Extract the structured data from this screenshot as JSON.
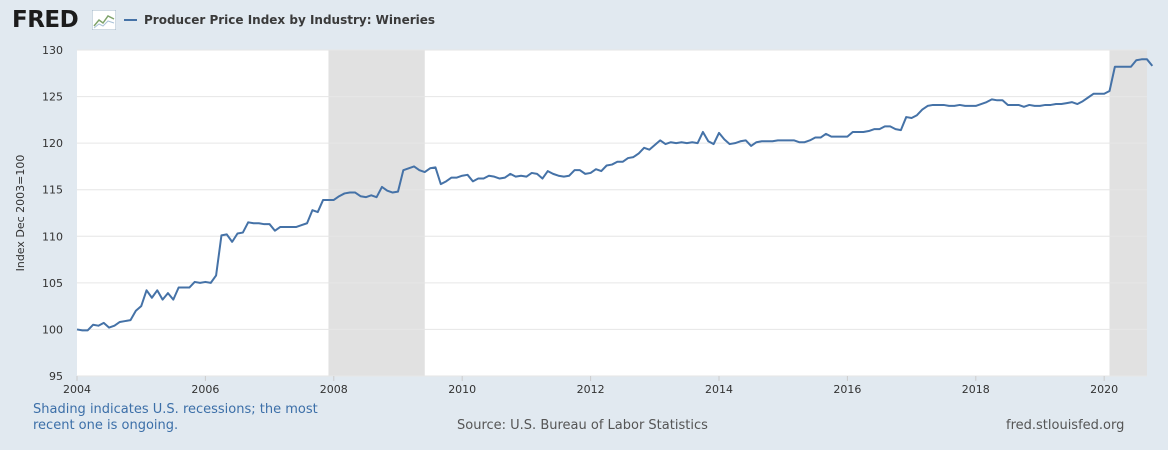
{
  "header": {
    "logo_text": "FRED",
    "legend_label": "Producer Price Index by Industry: Wineries"
  },
  "footer": {
    "note": "Shading indicates U.S. recessions; the most recent one is ongoing.",
    "source": "Source: U.S. Bureau of Labor Statistics",
    "site": "fred.stlouisfed.org"
  },
  "colors": {
    "series": "#4572a7",
    "recession": "#e1e1e1",
    "background": "#e1e9f0",
    "note_text": "#3c6fa8"
  },
  "icons": [
    "fred-logo-chart-icon"
  ],
  "chart_data": {
    "type": "line",
    "title": "",
    "xlabel": "",
    "ylabel": "Index Dec 2003=100",
    "xlim": [
      2004.0,
      2020.667
    ],
    "ylim": [
      95,
      130
    ],
    "yticks": [
      95,
      100,
      105,
      110,
      115,
      120,
      125,
      130
    ],
    "xticks": [
      2004,
      2006,
      2008,
      2010,
      2012,
      2014,
      2016,
      2018,
      2020
    ],
    "grid": "horizontal",
    "legend_position": "top-left",
    "recessions": [
      [
        2007.917,
        2009.417
      ],
      [
        2020.083,
        2020.667
      ]
    ],
    "series": [
      {
        "name": "Producer Price Index by Industry: Wineries",
        "start": "2004-01",
        "frequency": "monthly",
        "values": [
          100.0,
          99.9,
          99.9,
          100.5,
          100.4,
          100.7,
          100.2,
          100.4,
          100.8,
          100.9,
          101.0,
          102.0,
          102.5,
          104.2,
          103.4,
          104.2,
          103.2,
          103.9,
          103.2,
          104.5,
          104.5,
          104.5,
          105.1,
          105.0,
          105.1,
          105.0,
          105.8,
          110.1,
          110.2,
          109.4,
          110.3,
          110.4,
          111.5,
          111.4,
          111.4,
          111.3,
          111.3,
          110.6,
          111.0,
          111.0,
          111.0,
          111.0,
          111.2,
          111.4,
          112.8,
          112.6,
          113.9,
          113.9,
          113.9,
          114.3,
          114.6,
          114.7,
          114.7,
          114.3,
          114.2,
          114.4,
          114.2,
          115.3,
          114.9,
          114.7,
          114.8,
          117.1,
          117.3,
          117.5,
          117.1,
          116.9,
          117.3,
          117.4,
          115.6,
          115.9,
          116.3,
          116.3,
          116.5,
          116.6,
          115.9,
          116.2,
          116.2,
          116.5,
          116.4,
          116.2,
          116.3,
          116.7,
          116.4,
          116.5,
          116.4,
          116.8,
          116.7,
          116.2,
          117.0,
          116.7,
          116.5,
          116.4,
          116.5,
          117.1,
          117.1,
          116.7,
          116.8,
          117.2,
          117.0,
          117.6,
          117.7,
          118.0,
          118.0,
          118.4,
          118.5,
          118.9,
          119.5,
          119.3,
          119.8,
          120.3,
          119.9,
          120.1,
          120.0,
          120.1,
          120.0,
          120.1,
          120.0,
          121.2,
          120.2,
          119.9,
          121.1,
          120.4,
          119.9,
          120.0,
          120.2,
          120.3,
          119.7,
          120.1,
          120.2,
          120.2,
          120.2,
          120.3,
          120.3,
          120.3,
          120.3,
          120.1,
          120.1,
          120.3,
          120.6,
          120.6,
          121.0,
          120.7,
          120.7,
          120.7,
          120.7,
          121.2,
          121.2,
          121.2,
          121.3,
          121.5,
          121.5,
          121.8,
          121.8,
          121.5,
          121.4,
          122.8,
          122.7,
          123.0,
          123.6,
          124.0,
          124.1,
          124.1,
          124.1,
          124.0,
          124.0,
          124.1,
          124.0,
          124.0,
          124.0,
          124.2,
          124.4,
          124.7,
          124.6,
          124.6,
          124.1,
          124.1,
          124.1,
          123.9,
          124.1,
          124.0,
          124.0,
          124.1,
          124.1,
          124.2,
          124.2,
          124.3,
          124.4,
          124.2,
          124.5,
          124.9,
          125.3,
          125.3,
          125.3,
          125.6,
          128.2,
          128.2,
          128.2,
          128.2,
          128.9,
          129.0,
          129.0,
          128.3
        ]
      }
    ]
  }
}
